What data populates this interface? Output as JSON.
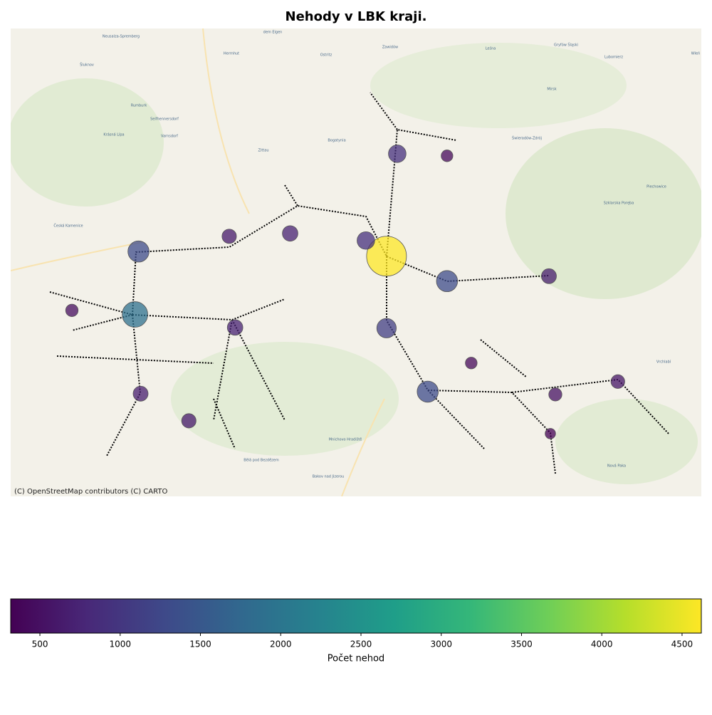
{
  "chart_data": {
    "type": "bubble-map",
    "title": "Nehody v LBK kraji.",
    "attribution": "(C) OpenStreetMap contributors (C) CARTO",
    "xlim": [
      14.35,
      15.75
    ],
    "ylim": [
      50.43,
      51.03
    ],
    "colormap": "viridis",
    "clim": [
      318,
      4620
    ],
    "colorbar_label": "Počet nehod",
    "colorbar_ticks": [
      500,
      1000,
      1500,
      2000,
      2500,
      3000,
      3500,
      4000,
      4500
    ],
    "clusters": {
      "lon": [
        15.1119,
        14.6019,
        15.2345,
        14.6091,
        15.1954,
        15.1119,
        15.07,
        15.1336,
        14.9165,
        14.8049,
        15.4411,
        14.6134,
        14.7112,
        14.793,
        15.5808,
        15.4541,
        14.4741,
        15.2345,
        15.2836,
        15.444
      ],
      "lat": [
        50.738,
        50.6633,
        50.706,
        50.744,
        50.5643,
        50.6457,
        50.7581,
        50.8694,
        50.7672,
        50.6466,
        50.7124,
        50.5617,
        50.5269,
        50.7635,
        50.5772,
        50.5607,
        50.6685,
        50.8667,
        50.601,
        50.5105
      ],
      "values": [
        4620,
        1900,
        1300,
        1300,
        1300,
        1100,
        900,
        900,
        700,
        700,
        650,
        650,
        600,
        600,
        550,
        500,
        450,
        400,
        400,
        318
      ]
    },
    "place_labels": [
      "Neusalza-Spremberg",
      "dem Eigen",
      "Zawidów",
      "Leśna",
      "Gryfów Śląski",
      "Wleń",
      "Šluknov",
      "Herrnhut",
      "Ostritz",
      "Lubomierz",
      "Mirsk",
      "Rumburk",
      "Seifhennersdorf",
      "Krásná Lípa",
      "Varnsdorf",
      "Zittau",
      "Bogatynia",
      "Świeradów-Zdrój",
      "Piechowice",
      "Szklarska Poręba",
      "Česká Kamenice",
      "Vrchlabí",
      "Mnichovo Hradiště",
      "Bělá pod Bezdězem",
      "Bakov nad Jizerou",
      "Nová Paka"
    ]
  }
}
